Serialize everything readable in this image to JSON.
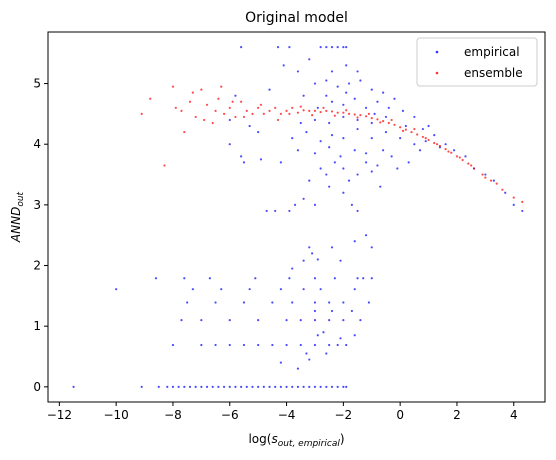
{
  "chart_data": {
    "type": "scatter",
    "title": "Original model",
    "xlabel_main": "log(",
    "xlabel_var": "s",
    "xlabel_sub": "out, empirical",
    "xlabel_close": ")",
    "ylabel_main": "ANND",
    "ylabel_sub": "out",
    "xlim": [
      -12.4,
      5.1
    ],
    "ylim": [
      -0.25,
      5.85
    ],
    "x_ticks": [
      -12,
      -10,
      -8,
      -6,
      -4,
      -2,
      0,
      2,
      4
    ],
    "x_tick_labels": [
      "−12",
      "−10",
      "−8",
      "−6",
      "−4",
      "−2",
      "0",
      "2",
      "4"
    ],
    "y_ticks": [
      0,
      1,
      2,
      3,
      4,
      5
    ],
    "y_tick_labels": [
      "0",
      "1",
      "2",
      "3",
      "4",
      "5"
    ],
    "legend_position": "top-right",
    "series": [
      {
        "name": "empirical",
        "color": "#0000ff",
        "points": [
          [
            -11.5,
            0.0
          ],
          [
            -9.1,
            0.0
          ],
          [
            -8.5,
            0.0
          ],
          [
            -8.2,
            0.0
          ],
          [
            -8.0,
            0.0
          ],
          [
            -7.8,
            0.0
          ],
          [
            -7.6,
            0.0
          ],
          [
            -7.4,
            0.0
          ],
          [
            -7.2,
            0.0
          ],
          [
            -7.0,
            0.0
          ],
          [
            -6.8,
            0.0
          ],
          [
            -6.6,
            0.0
          ],
          [
            -6.4,
            0.0
          ],
          [
            -6.2,
            0.0
          ],
          [
            -6.0,
            0.0
          ],
          [
            -5.8,
            0.0
          ],
          [
            -5.6,
            0.0
          ],
          [
            -5.4,
            0.0
          ],
          [
            -5.2,
            0.0
          ],
          [
            -5.0,
            0.0
          ],
          [
            -4.8,
            0.0
          ],
          [
            -4.6,
            0.0
          ],
          [
            -4.4,
            0.0
          ],
          [
            -4.2,
            0.0
          ],
          [
            -4.0,
            0.0
          ],
          [
            -3.8,
            0.0
          ],
          [
            -3.6,
            0.0
          ],
          [
            -3.4,
            0.0
          ],
          [
            -3.2,
            0.0
          ],
          [
            -3.0,
            0.0
          ],
          [
            -2.8,
            0.0
          ],
          [
            -2.6,
            0.0
          ],
          [
            -2.4,
            0.0
          ],
          [
            -2.2,
            0.0
          ],
          [
            -2.0,
            0.0
          ],
          [
            -1.9,
            0.0
          ],
          [
            -8.0,
            0.69
          ],
          [
            -7.0,
            0.69
          ],
          [
            -6.5,
            0.69
          ],
          [
            -6.0,
            0.69
          ],
          [
            -5.5,
            0.69
          ],
          [
            -5.0,
            0.69
          ],
          [
            -4.5,
            0.69
          ],
          [
            -4.0,
            0.69
          ],
          [
            -3.5,
            0.69
          ],
          [
            -3.0,
            0.69
          ],
          [
            -2.5,
            0.69
          ],
          [
            -2.2,
            0.69
          ],
          [
            -1.9,
            0.69
          ],
          [
            -7.7,
            1.1
          ],
          [
            -7.0,
            1.1
          ],
          [
            -6.0,
            1.1
          ],
          [
            -5.0,
            1.1
          ],
          [
            -4.0,
            1.1
          ],
          [
            -3.5,
            1.1
          ],
          [
            -3.0,
            1.1
          ],
          [
            -2.5,
            1.1
          ],
          [
            -2.0,
            1.1
          ],
          [
            -7.5,
            1.39
          ],
          [
            -6.5,
            1.39
          ],
          [
            -5.5,
            1.39
          ],
          [
            -4.5,
            1.39
          ],
          [
            -3.8,
            1.39
          ],
          [
            -3.0,
            1.39
          ],
          [
            -2.5,
            1.39
          ],
          [
            -2.0,
            1.39
          ],
          [
            -7.3,
            1.61
          ],
          [
            -6.3,
            1.61
          ],
          [
            -5.3,
            1.61
          ],
          [
            -4.2,
            1.61
          ],
          [
            -3.4,
            1.61
          ],
          [
            -2.8,
            1.61
          ],
          [
            -1.6,
            1.61
          ],
          [
            -10.0,
            1.61
          ],
          [
            -7.6,
            1.79
          ],
          [
            -6.7,
            1.79
          ],
          [
            -5.1,
            1.79
          ],
          [
            -3.9,
            1.79
          ],
          [
            -3.0,
            1.79
          ],
          [
            -2.3,
            1.79
          ],
          [
            -1.5,
            1.79
          ],
          [
            -8.6,
            1.79
          ],
          [
            -3.6,
            0.3
          ],
          [
            -3.2,
            0.45
          ],
          [
            -2.7,
            0.9
          ],
          [
            -2.4,
            1.25
          ],
          [
            -3.3,
            0.55
          ],
          [
            -2.9,
            0.85
          ],
          [
            -4.2,
            0.4
          ],
          [
            -3.0,
            1.25
          ],
          [
            -2.6,
            0.55
          ],
          [
            -2.1,
            0.8
          ],
          [
            -1.6,
            0.85
          ],
          [
            -1.4,
            1.1
          ],
          [
            -1.1,
            1.39
          ],
          [
            -1.0,
            1.79
          ],
          [
            -1.7,
            1.25
          ],
          [
            -1.3,
            1.79
          ],
          [
            -3.8,
            1.95
          ],
          [
            -3.4,
            2.08
          ],
          [
            -3.2,
            2.3
          ],
          [
            -3.1,
            2.2
          ],
          [
            -2.9,
            2.1
          ],
          [
            -2.4,
            2.3
          ],
          [
            -2.1,
            2.08
          ],
          [
            -1.6,
            2.4
          ],
          [
            -1.2,
            2.5
          ],
          [
            -1.0,
            2.3
          ],
          [
            -3.9,
            2.9
          ],
          [
            -4.4,
            2.9
          ],
          [
            -3.7,
            3.0
          ],
          [
            -4.7,
            2.9
          ],
          [
            -3.4,
            3.1
          ],
          [
            -3.0,
            3.0
          ],
          [
            -2.5,
            3.3
          ],
          [
            -2.0,
            3.2
          ],
          [
            -1.7,
            3.0
          ],
          [
            -1.5,
            2.9
          ],
          [
            -3.2,
            3.4
          ],
          [
            -2.8,
            3.6
          ],
          [
            -2.6,
            3.5
          ],
          [
            -2.3,
            3.7
          ],
          [
            -2.0,
            3.6
          ],
          [
            -1.8,
            3.4
          ],
          [
            -1.5,
            3.5
          ],
          [
            -1.2,
            3.7
          ],
          [
            -1.0,
            3.55
          ],
          [
            -0.8,
            3.65
          ],
          [
            -5.6,
            3.8
          ],
          [
            -4.9,
            3.75
          ],
          [
            -4.2,
            3.7
          ],
          [
            -3.6,
            3.9
          ],
          [
            -3.0,
            3.85
          ],
          [
            -2.5,
            3.95
          ],
          [
            -2.1,
            3.8
          ],
          [
            -1.6,
            3.9
          ],
          [
            -1.2,
            3.85
          ],
          [
            -0.6,
            3.9
          ],
          [
            -3.8,
            4.1
          ],
          [
            -3.3,
            4.2
          ],
          [
            -2.8,
            4.05
          ],
          [
            -2.4,
            4.15
          ],
          [
            -2.0,
            4.1
          ],
          [
            -1.5,
            4.25
          ],
          [
            -1.0,
            4.1
          ],
          [
            -0.5,
            4.2
          ],
          [
            0.0,
            4.1
          ],
          [
            0.5,
            4.0
          ],
          [
            -3.5,
            4.35
          ],
          [
            -3.0,
            4.4
          ],
          [
            -2.5,
            4.35
          ],
          [
            -2.0,
            4.45
          ],
          [
            -1.5,
            4.4
          ],
          [
            -1.0,
            4.35
          ],
          [
            -0.5,
            4.45
          ],
          [
            0.2,
            4.3
          ],
          [
            0.8,
            4.25
          ],
          [
            1.2,
            4.15
          ],
          [
            -2.9,
            4.6
          ],
          [
            -2.4,
            4.7
          ],
          [
            -2.0,
            4.65
          ],
          [
            -1.6,
            4.75
          ],
          [
            -1.2,
            4.6
          ],
          [
            -0.8,
            4.7
          ],
          [
            -0.4,
            4.6
          ],
          [
            0.1,
            4.55
          ],
          [
            -2.6,
            4.8
          ],
          [
            -1.9,
            4.85
          ],
          [
            -3.0,
            5.0
          ],
          [
            -2.6,
            5.05
          ],
          [
            -2.2,
            4.95
          ],
          [
            -1.8,
            5.0
          ],
          [
            -1.4,
            5.05
          ],
          [
            -1.0,
            4.9
          ],
          [
            -0.6,
            4.85
          ],
          [
            -2.4,
            5.2
          ],
          [
            -1.9,
            5.3
          ],
          [
            -1.5,
            5.2
          ],
          [
            -2.8,
            5.6
          ],
          [
            -2.6,
            5.6
          ],
          [
            -2.4,
            5.6
          ],
          [
            -2.2,
            5.6
          ],
          [
            -2.0,
            5.6
          ],
          [
            -1.9,
            5.6
          ],
          [
            -3.9,
            5.6
          ],
          [
            -4.3,
            5.6
          ],
          [
            -5.6,
            5.6
          ],
          [
            -3.2,
            5.4
          ],
          [
            -4.1,
            5.3
          ],
          [
            -3.6,
            5.2
          ],
          [
            -4.6,
            4.9
          ],
          [
            -3.4,
            4.8
          ],
          [
            -5.0,
            4.2
          ],
          [
            -5.8,
            4.8
          ],
          [
            -6.0,
            4.4
          ],
          [
            -5.3,
            4.3
          ],
          [
            -6.0,
            4.0
          ],
          [
            -5.5,
            3.7
          ],
          [
            1.6,
            4.0
          ],
          [
            1.9,
            3.9
          ],
          [
            2.3,
            3.8
          ],
          [
            2.6,
            3.6
          ],
          [
            3.0,
            3.5
          ],
          [
            3.3,
            3.4
          ],
          [
            3.7,
            3.2
          ],
          [
            4.0,
            3.0
          ],
          [
            4.3,
            2.9
          ],
          [
            1.0,
            4.3
          ],
          [
            -0.3,
            3.8
          ],
          [
            0.3,
            3.7
          ],
          [
            0.7,
            3.9
          ],
          [
            -0.7,
            3.3
          ],
          [
            -0.1,
            3.6
          ],
          [
            0.9,
            4.05
          ],
          [
            1.4,
            3.95
          ],
          [
            0.5,
            4.45
          ],
          [
            -0.2,
            4.75
          ],
          [
            -0.9,
            4.5
          ]
        ]
      },
      {
        "name": "ensemble",
        "color": "#ff0000",
        "points": [
          [
            -9.1,
            4.5
          ],
          [
            -8.3,
            3.65
          ],
          [
            -8.0,
            4.95
          ],
          [
            -7.7,
            4.55
          ],
          [
            -7.6,
            4.2
          ],
          [
            -7.4,
            4.7
          ],
          [
            -7.2,
            4.45
          ],
          [
            -7.0,
            4.9
          ],
          [
            -6.8,
            4.65
          ],
          [
            -6.6,
            4.35
          ],
          [
            -6.4,
            4.75
          ],
          [
            -6.2,
            4.5
          ],
          [
            -6.0,
            4.6
          ],
          [
            -5.8,
            4.45
          ],
          [
            -5.6,
            4.7
          ],
          [
            -5.4,
            4.55
          ],
          [
            -5.2,
            4.5
          ],
          [
            -5.0,
            4.6
          ],
          [
            -4.8,
            4.5
          ],
          [
            -4.6,
            4.55
          ],
          [
            -4.4,
            4.6
          ],
          [
            -4.2,
            4.5
          ],
          [
            -4.0,
            4.55
          ],
          [
            -3.8,
            4.6
          ],
          [
            -3.6,
            4.52
          ],
          [
            -3.4,
            4.56
          ],
          [
            -3.2,
            4.55
          ],
          [
            -3.0,
            4.55
          ],
          [
            -2.8,
            4.53
          ],
          [
            -2.6,
            4.55
          ],
          [
            -2.4,
            4.54
          ],
          [
            -2.2,
            4.52
          ],
          [
            -2.0,
            4.52
          ],
          [
            -1.8,
            4.5
          ],
          [
            -1.6,
            4.49
          ],
          [
            -1.4,
            4.48
          ],
          [
            -1.2,
            4.46
          ],
          [
            -1.0,
            4.43
          ],
          [
            -0.8,
            4.41
          ],
          [
            -0.6,
            4.38
          ],
          [
            -0.4,
            4.35
          ],
          [
            -0.2,
            4.32
          ],
          [
            0.0,
            4.28
          ],
          [
            0.2,
            4.24
          ],
          [
            0.4,
            4.2
          ],
          [
            0.6,
            4.16
          ],
          [
            0.8,
            4.12
          ],
          [
            1.0,
            4.07
          ],
          [
            1.2,
            4.02
          ],
          [
            1.4,
            3.97
          ],
          [
            1.6,
            3.92
          ],
          [
            1.8,
            3.86
          ],
          [
            2.0,
            3.8
          ],
          [
            2.2,
            3.74
          ],
          [
            2.4,
            3.68
          ],
          [
            2.6,
            3.6
          ],
          [
            2.9,
            3.5
          ],
          [
            3.2,
            3.4
          ],
          [
            3.6,
            3.25
          ],
          [
            4.0,
            3.12
          ],
          [
            4.3,
            3.05
          ],
          [
            -8.8,
            4.75
          ],
          [
            -7.9,
            4.6
          ],
          [
            -7.3,
            4.85
          ],
          [
            -6.9,
            4.4
          ],
          [
            -6.5,
            4.55
          ],
          [
            -5.9,
            4.7
          ],
          [
            -5.5,
            4.45
          ],
          [
            -4.9,
            4.65
          ],
          [
            -4.3,
            4.4
          ],
          [
            -3.9,
            4.5
          ],
          [
            -3.5,
            4.62
          ],
          [
            -3.1,
            4.48
          ],
          [
            -2.7,
            4.6
          ],
          [
            -2.3,
            4.47
          ],
          [
            -1.9,
            4.56
          ],
          [
            -1.5,
            4.44
          ],
          [
            -1.1,
            4.5
          ],
          [
            -0.7,
            4.36
          ],
          [
            -0.3,
            4.4
          ],
          [
            0.1,
            4.22
          ],
          [
            0.5,
            4.25
          ],
          [
            0.9,
            4.1
          ],
          [
            1.3,
            4.0
          ],
          [
            1.7,
            3.88
          ],
          [
            2.1,
            3.78
          ],
          [
            2.5,
            3.65
          ],
          [
            3.0,
            3.45
          ],
          [
            3.4,
            3.35
          ],
          [
            -6.3,
            4.95
          ]
        ]
      }
    ]
  }
}
